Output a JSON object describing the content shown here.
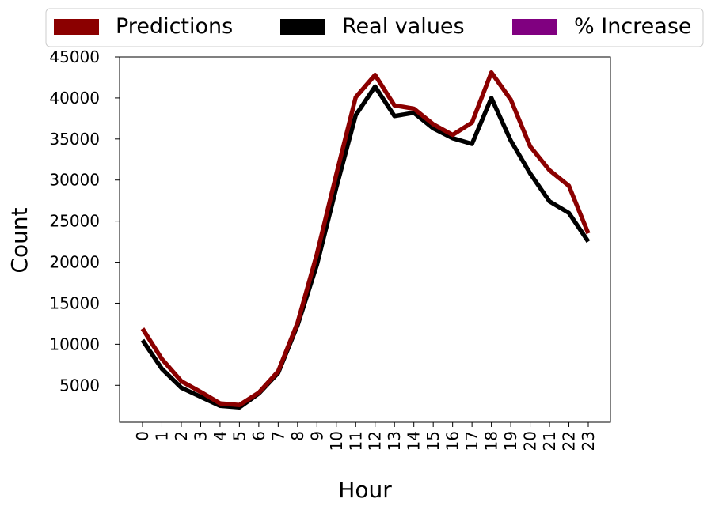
{
  "chart_data": {
    "type": "line",
    "xlabel": "Hour",
    "ylabel": "Count",
    "x": [
      0,
      1,
      2,
      3,
      4,
      5,
      6,
      7,
      8,
      9,
      10,
      11,
      12,
      13,
      14,
      15,
      16,
      17,
      18,
      19,
      20,
      21,
      22,
      23
    ],
    "x_tick_labels": [
      "0",
      "1",
      "2",
      "3",
      "4",
      "5",
      "6",
      "7",
      "8",
      "9",
      "10",
      "11",
      "12",
      "13",
      "14",
      "15",
      "16",
      "17",
      "18",
      "19",
      "20",
      "21",
      "22",
      "23"
    ],
    "ylim": [
      500,
      45000
    ],
    "y_ticks": [
      5000,
      10000,
      15000,
      20000,
      25000,
      30000,
      35000,
      40000,
      45000
    ],
    "y_tick_labels": [
      "5000",
      "10000",
      "15000",
      "20000",
      "25000",
      "30000",
      "35000",
      "40000",
      "45000"
    ],
    "grid": false,
    "legend_position": "top",
    "legend": [
      {
        "label": "Predictions",
        "color": "#8b0000"
      },
      {
        "label": "Real values",
        "color": "#000000"
      },
      {
        "label": "% Increase",
        "color": "#800080"
      }
    ],
    "series": [
      {
        "name": "Predictions",
        "color": "#8b0000",
        "values": [
          11900,
          8200,
          5500,
          4200,
          2800,
          2600,
          4100,
          6700,
          12600,
          21000,
          30700,
          40100,
          42800,
          39100,
          38700,
          36800,
          35500,
          37000,
          43100,
          39800,
          34100,
          31200,
          29300,
          23500
        ]
      },
      {
        "name": "Real values",
        "color": "#000000",
        "values": [
          10500,
          7000,
          4700,
          3600,
          2500,
          2300,
          4000,
          6500,
          12300,
          19700,
          29100,
          37900,
          41400,
          37800,
          38200,
          36300,
          35100,
          34400,
          40000,
          34800,
          30800,
          27400,
          26000,
          22500
        ]
      }
    ]
  }
}
